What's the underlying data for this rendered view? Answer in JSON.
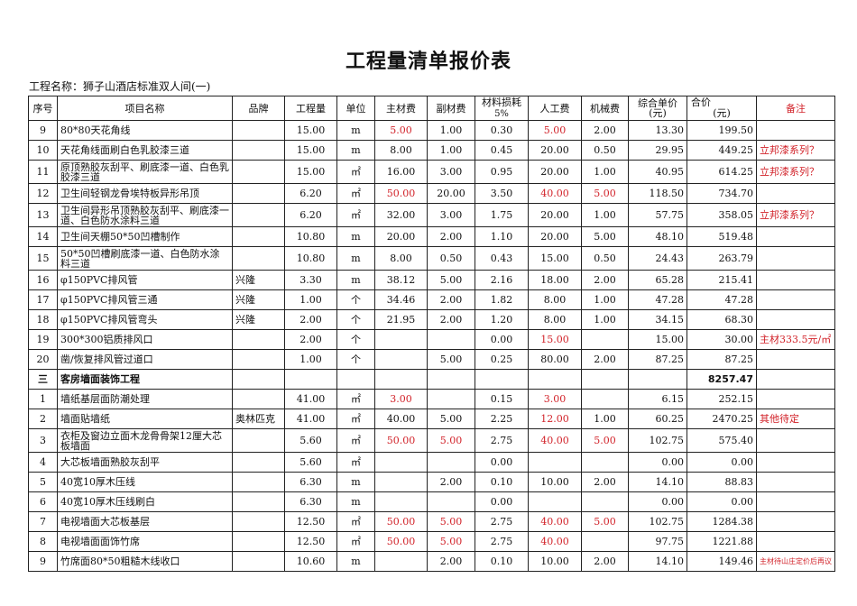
{
  "title": "工程量清单报价表",
  "project_label": "工程名称：狮子山酒店标准双人间(一)",
  "headers": {
    "seq": "序号",
    "name": "项目名称",
    "brand": "品牌",
    "qty": "工程量",
    "unit": "单位",
    "main": "主材费",
    "aux": "副材费",
    "loss_top": "材料损耗",
    "loss_bottom": "5%",
    "labor": "人工费",
    "machine": "机械费",
    "unit_price": "综合单价(元)",
    "total_top": "合价",
    "total_bottom": "(元)",
    "remark": "备注"
  },
  "colors": {
    "red": "#d2232a",
    "border": "#222222"
  },
  "rows": [
    {
      "cells": [
        "9",
        "80*80天花角线",
        "",
        "15.00",
        "m",
        "5.00",
        "1.00",
        "0.30",
        "5.00",
        "2.00",
        "13.30",
        "199.50",
        ""
      ],
      "red": [
        5,
        8
      ]
    },
    {
      "cells": [
        "10",
        "天花角线面刷白色乳胶漆三道",
        "",
        "15.00",
        "m",
        "8.00",
        "1.00",
        "0.45",
        "20.00",
        "0.50",
        "29.95",
        "449.25",
        "立邦漆系列？"
      ],
      "red": [
        12
      ]
    },
    {
      "cells": [
        "11",
        "原顶熟胶灰刮平、刷底漆一道、白色乳胶漆三道",
        "",
        "15.00",
        "㎡",
        "16.00",
        "3.00",
        "0.95",
        "20.00",
        "1.00",
        "40.95",
        "614.25",
        "立邦漆系列？"
      ],
      "red": [
        12
      ],
      "tall": true
    },
    {
      "cells": [
        "12",
        "卫生间轻钢龙骨埃特板异形吊顶",
        "",
        "6.20",
        "㎡",
        "50.00",
        "20.00",
        "3.50",
        "40.00",
        "5.00",
        "118.50",
        "734.70",
        ""
      ],
      "red": [
        5,
        8,
        9
      ]
    },
    {
      "cells": [
        "13",
        "卫生间异形吊顶熟胶灰刮平、刷底漆一道、白色防水涂料三道",
        "",
        "6.20",
        "㎡",
        "32.00",
        "3.00",
        "1.75",
        "20.00",
        "1.00",
        "57.75",
        "358.05",
        "立邦漆系列？"
      ],
      "red": [
        12
      ],
      "tall": true
    },
    {
      "cells": [
        "14",
        "卫生间天棚50*50凹槽制作",
        "",
        "10.80",
        "m",
        "20.00",
        "2.00",
        "1.10",
        "20.00",
        "5.00",
        "48.10",
        "519.48",
        ""
      ],
      "red": []
    },
    {
      "cells": [
        "15",
        "50*50凹槽刷底漆一道、白色防水涂料三道",
        "",
        "10.80",
        "m",
        "8.00",
        "0.50",
        "0.43",
        "15.00",
        "0.50",
        "24.43",
        "263.79",
        ""
      ],
      "red": [],
      "tall": true
    },
    {
      "cells": [
        "16",
        "φ150PVC排风管",
        "兴隆",
        "3.30",
        "m",
        "38.12",
        "5.00",
        "2.16",
        "18.00",
        "2.00",
        "65.28",
        "215.41",
        ""
      ],
      "red": []
    },
    {
      "cells": [
        "17",
        "φ150PVC排风管三通",
        "兴隆",
        "1.00",
        "个",
        "34.46",
        "2.00",
        "1.82",
        "8.00",
        "1.00",
        "47.28",
        "47.28",
        ""
      ],
      "red": []
    },
    {
      "cells": [
        "18",
        "φ150PVC排风管弯头",
        "兴隆",
        "2.00",
        "个",
        "21.95",
        "2.00",
        "1.20",
        "8.00",
        "1.00",
        "34.15",
        "68.30",
        ""
      ],
      "red": []
    },
    {
      "cells": [
        "19",
        "300*300铝质排风口",
        "",
        "2.00",
        "个",
        "",
        "",
        "0.00",
        "15.00",
        "",
        "15.00",
        "30.00",
        "主材333.5元/㎡"
      ],
      "red": [
        8,
        12
      ]
    },
    {
      "cells": [
        "20",
        "凿/恢复排风管过道口",
        "",
        "1.00",
        "个",
        "",
        "5.00",
        "0.25",
        "80.00",
        "2.00",
        "87.25",
        "87.25",
        ""
      ],
      "red": []
    },
    {
      "cells": [
        "三",
        "客房墙面装饰工程",
        "",
        "",
        "",
        "",
        "",
        "",
        "",
        "",
        "",
        "8257.47",
        ""
      ],
      "red": [],
      "bold": true
    },
    {
      "cells": [
        "1",
        "墙纸基层面防潮处理",
        "",
        "41.00",
        "㎡",
        "3.00",
        "",
        "0.15",
        "3.00",
        "",
        "6.15",
        "252.15",
        ""
      ],
      "red": [
        5,
        8
      ]
    },
    {
      "cells": [
        "2",
        "墙面贴墙纸",
        "奥林匹克",
        "41.00",
        "㎡",
        "40.00",
        "5.00",
        "2.25",
        "12.00",
        "1.00",
        "60.25",
        "2470.25",
        "其他待定"
      ],
      "red": [
        8,
        12
      ]
    },
    {
      "cells": [
        "3",
        "衣柜及窗边立面木龙骨骨架12厘大芯板墙面",
        "",
        "5.60",
        "㎡",
        "50.00",
        "5.00",
        "2.75",
        "40.00",
        "5.00",
        "102.75",
        "575.40",
        ""
      ],
      "red": [
        5,
        6,
        8,
        9
      ],
      "tall": true
    },
    {
      "cells": [
        "4",
        "大芯板墙面熟胶灰刮平",
        "",
        "5.60",
        "㎡",
        "",
        "",
        "0.00",
        "",
        "",
        "0.00",
        "0.00",
        ""
      ],
      "red": []
    },
    {
      "cells": [
        "5",
        "40宽10厚木压线",
        "",
        "6.30",
        "m",
        "",
        "2.00",
        "0.10",
        "10.00",
        "2.00",
        "14.10",
        "88.83",
        ""
      ],
      "red": []
    },
    {
      "cells": [
        "6",
        "40宽10厚木压线刷白",
        "",
        "6.30",
        "m",
        "",
        "",
        "0.00",
        "",
        "",
        "0.00",
        "0.00",
        ""
      ],
      "red": []
    },
    {
      "cells": [
        "7",
        "电视墙面大芯板基层",
        "",
        "12.50",
        "㎡",
        "50.00",
        "5.00",
        "2.75",
        "40.00",
        "5.00",
        "102.75",
        "1284.38",
        ""
      ],
      "red": [
        5,
        6,
        8,
        9
      ]
    },
    {
      "cells": [
        "8",
        "电视墙面面饰竹席",
        "",
        "12.50",
        "㎡",
        "50.00",
        "5.00",
        "2.75",
        "40.00",
        "",
        "97.75",
        "1221.88",
        ""
      ],
      "red": [
        5,
        6,
        8
      ]
    },
    {
      "cells": [
        "9",
        "竹席面80*50粗糙木线收口",
        "",
        "10.60",
        "m",
        "",
        "2.00",
        "0.10",
        "10.00",
        "2.00",
        "14.10",
        "149.46",
        "主材待山庄定价后再议"
      ],
      "red": [
        12
      ],
      "small_remark": true
    }
  ]
}
